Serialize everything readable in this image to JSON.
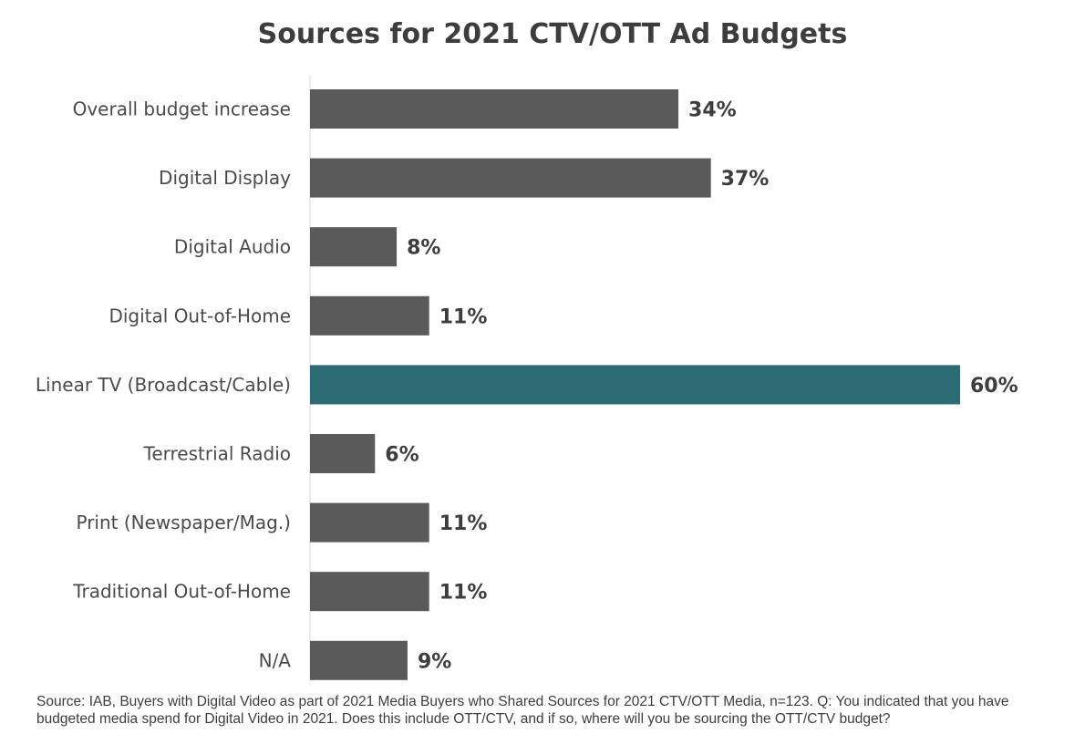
{
  "chart_data": {
    "type": "bar",
    "orientation": "horizontal",
    "title": "Sources for 2021 CTV/OTT Ad Budgets",
    "xlabel": "",
    "ylabel": "",
    "categories": [
      "Overall budget increase",
      "Digital Display",
      "Digital Audio",
      "Digital Out-of-Home",
      "Linear TV (Broadcast/Cable)",
      "Terrestrial Radio",
      "Print (Newspaper/Mag.)",
      "Traditional Out-of-Home",
      "N/A"
    ],
    "values": [
      34,
      37,
      8,
      11,
      60,
      6,
      11,
      11,
      9
    ],
    "value_labels": [
      "34%",
      "37%",
      "8%",
      "11%",
      "60%",
      "6%",
      "11%",
      "11%",
      "9%"
    ],
    "unit": "%",
    "xlim": [
      0,
      60
    ],
    "grid": false,
    "legend": "none",
    "highlight_index": 4,
    "colors": {
      "default": "#5a5a5a",
      "highlight": "#2a6b74",
      "axis": "#d9d9d9"
    },
    "source_note": "Source: IAB, Buyers with Digital Video as part of 2021 Media Buyers who Shared Sources for 2021 CTV/OTT Media, n=123. Q: You indicated that you have budgeted media spend for Digital Video in 2021. Does this include OTT/CTV, and if so, where will you be sourcing the OTT/CTV budget?"
  }
}
